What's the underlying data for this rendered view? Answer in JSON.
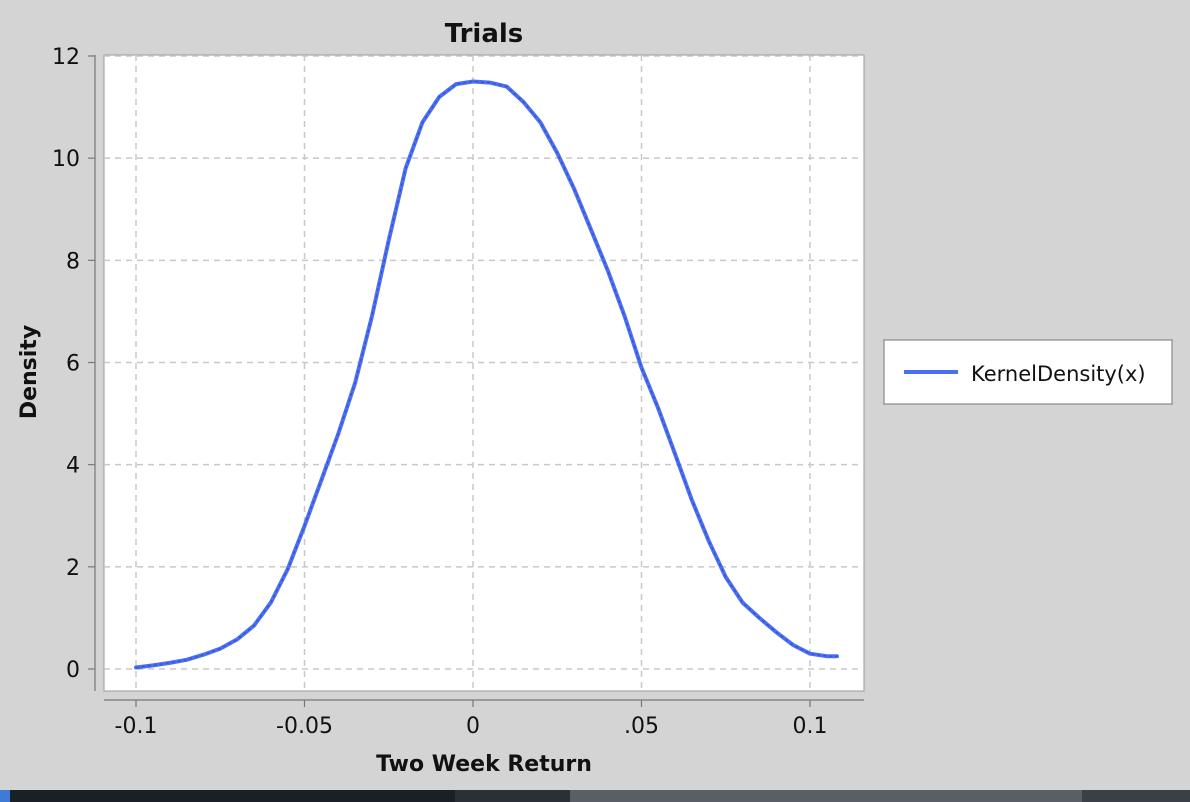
{
  "chart_data": {
    "type": "line",
    "title": "Trials",
    "xlabel": "Two Week Return",
    "ylabel": "Density",
    "xlim": [
      -0.1,
      0.1
    ],
    "ylim": [
      0,
      12
    ],
    "x_ticks": [
      -0.1,
      -0.05,
      0,
      0.05,
      0.1
    ],
    "x_tick_labels": [
      "-0.1",
      "-0.05",
      "0",
      ".05",
      "0.1"
    ],
    "y_ticks": [
      0,
      2,
      4,
      6,
      8,
      10,
      12
    ],
    "y_tick_labels": [
      "0",
      "2",
      "4",
      "6",
      "8",
      "10",
      "12"
    ],
    "grid": true,
    "legend_position": "right",
    "series": [
      {
        "name": "KernelDensity(x)",
        "color": "#4a6ef5",
        "x": [
          -0.1,
          -0.095,
          -0.09,
          -0.085,
          -0.08,
          -0.075,
          -0.07,
          -0.065,
          -0.06,
          -0.055,
          -0.05,
          -0.045,
          -0.04,
          -0.035,
          -0.03,
          -0.025,
          -0.02,
          -0.015,
          -0.01,
          -0.005,
          0,
          0.005,
          0.01,
          0.015,
          0.02,
          0.025,
          0.03,
          0.035,
          0.04,
          0.045,
          0.05,
          0.055,
          0.06,
          0.065,
          0.07,
          0.075,
          0.08,
          0.085,
          0.09,
          0.095,
          0.1,
          0.105,
          0.108
        ],
        "y": [
          0.03,
          0.07,
          0.12,
          0.18,
          0.28,
          0.4,
          0.58,
          0.85,
          1.3,
          1.95,
          2.8,
          3.7,
          4.6,
          5.6,
          6.9,
          8.4,
          9.8,
          10.7,
          11.2,
          11.45,
          11.5,
          11.48,
          11.4,
          11.1,
          10.7,
          10.1,
          9.4,
          8.6,
          7.8,
          6.9,
          5.9,
          5.1,
          4.2,
          3.3,
          2.5,
          1.8,
          1.3,
          1.0,
          0.72,
          0.47,
          0.3,
          0.25,
          0.25
        ]
      }
    ]
  }
}
